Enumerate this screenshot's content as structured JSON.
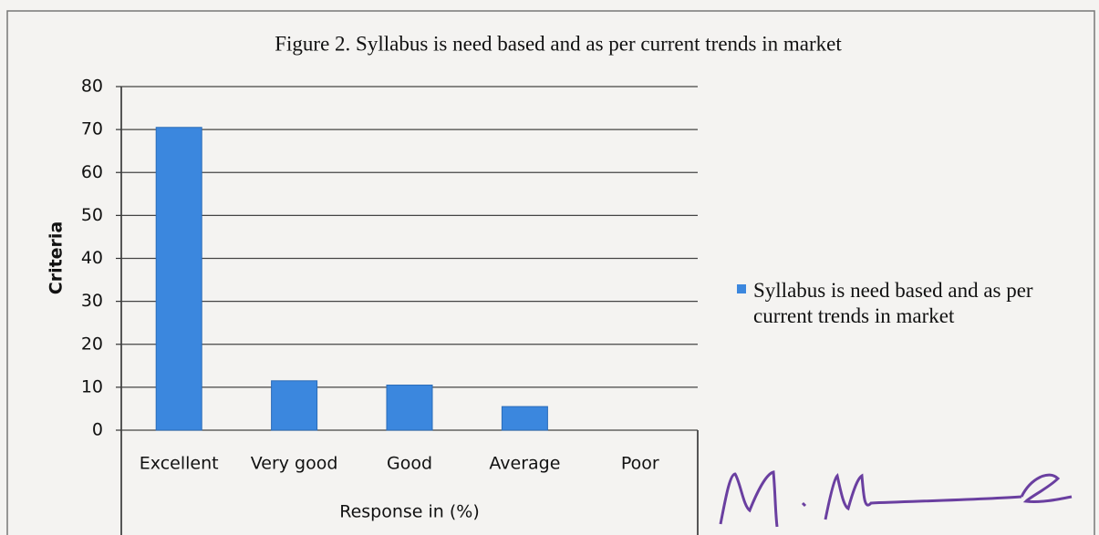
{
  "chart_data": {
    "type": "bar",
    "title": "Figure 2. Syllabus is need based and as per current trends in market",
    "x_label": "Response in (%)",
    "y_label": "Criteria",
    "categories": [
      "Excellent",
      "Very good",
      "Good",
      "Average",
      "Poor"
    ],
    "series": [
      {
        "name": "Syllabus is need based and as per current trends in market",
        "color": "#3b87de",
        "values": [
          70.5,
          11.5,
          10.5,
          5.5,
          0
        ]
      }
    ],
    "ylim": [
      0,
      80
    ],
    "yticks": [
      0,
      10,
      20,
      30,
      40,
      50,
      60,
      70,
      80
    ],
    "grid": true,
    "legend": "right"
  }
}
